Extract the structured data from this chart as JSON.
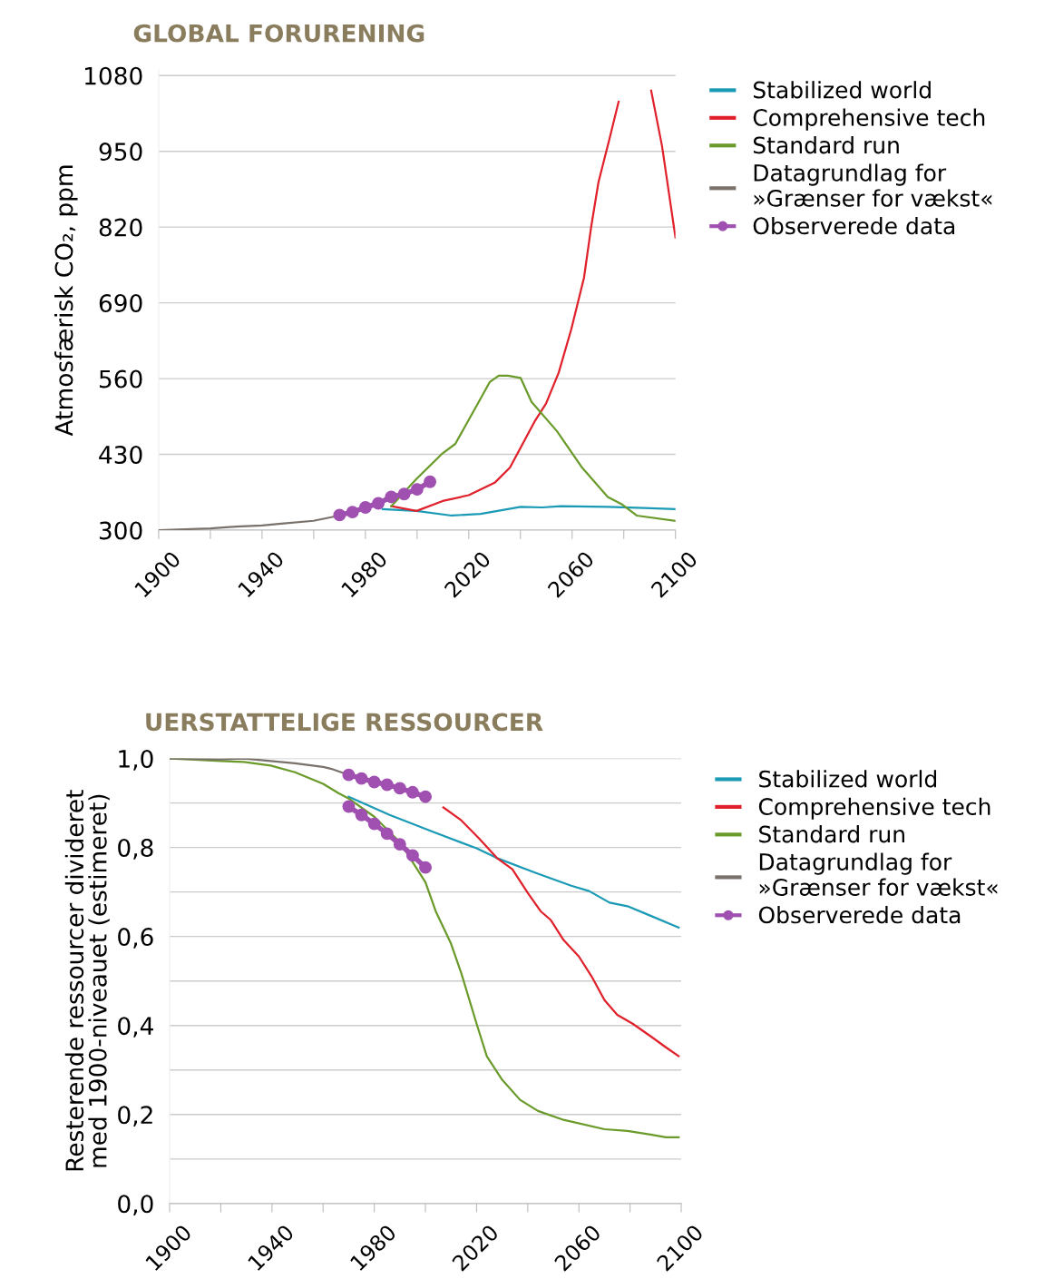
{
  "chart_data": [
    {
      "type": "line",
      "title": "GLOBAL FORURENING",
      "ylabel": "Atmosfærisk CO₂, ppm",
      "xlim": [
        1900,
        2100
      ],
      "ylim": [
        300,
        1090
      ],
      "xticks": [
        1900,
        {
          "value": 1920,
          "label": null
        },
        1940,
        {
          "value": 1960,
          "label": null
        },
        1980,
        {
          "value": 2000,
          "label": null
        },
        2020,
        {
          "value": 2040,
          "label": null
        },
        2060,
        {
          "value": 2080,
          "label": null
        },
        2100
      ],
      "yticks": [
        300,
        430,
        560,
        690,
        820,
        950,
        1080
      ],
      "grid": "y",
      "legend": "right",
      "marker": "none",
      "line_style": "solid",
      "series": [
        {
          "name": "Stabilized world",
          "color": "#1a9ab5",
          "x": [
            1986.7,
            1999.8,
            2013.4,
            2024.6,
            2040.1,
            2048.5,
            2055.5,
            2073.8,
            2087.8,
            2100
          ],
          "values": [
            336,
            333,
            325,
            328,
            340,
            339,
            341,
            340,
            338,
            336
          ]
        },
        {
          "name": "Comprehensive tech",
          "color": "#e0202a",
          "x": [
            1990,
            1999.8,
            2009.9,
            2020,
            2030.2,
            2035.9,
            2045.7,
            2049.9,
            2054.8,
            2059.7,
            2064.6,
            2067.4,
            2070.2,
            2074.5,
            2078,
            2085,
            2090.6,
            2094.8,
            2100
          ],
          "values": [
            341,
            333,
            350,
            360,
            382,
            407,
            488,
            517,
            570,
            645,
            733,
            821,
            897,
            972,
            1035,
            null,
            1054,
            959,
            802
          ]
        },
        {
          "name": "Standard run",
          "color": "#6a9a2a",
          "x": [
            1990,
            1999.8,
            2009.9,
            2014.8,
            2024.6,
            2028.1,
            2031.6,
            2035.2,
            2040.1,
            2044.3,
            2054.1,
            2063.9,
            2073.8,
            2079.4,
            2085,
            2100
          ],
          "values": [
            341,
            388,
            432,
            448,
            526,
            554,
            565,
            565,
            561,
            520,
            470,
            407,
            357,
            344,
            325,
            316
          ]
        },
        {
          "name": "Datagrundlag for\n»Grænser for vækst«",
          "color": "#7a716a",
          "x": [
            1900,
            1920,
            1929.9,
            1940,
            1947.4,
            1959.9,
            1969.9
          ],
          "values": [
            300,
            303,
            306,
            308,
            311,
            316,
            325
          ]
        },
        {
          "name": "Observerede data",
          "color": "#a050b0",
          "marker": "circle",
          "x": [
            1970,
            1975,
            1980,
            1985,
            1990,
            1995,
            2000,
            2005
          ],
          "values": [
            326,
            331,
            339,
            346,
            357,
            362,
            370,
            383
          ]
        }
      ]
    },
    {
      "type": "line",
      "title": "UERSTATTELIGE RESSOURCER",
      "ylabel": "Resterende ressourcer divideret\nmed 1900-niveauet (estimeret)",
      "xlim": [
        1900,
        2100
      ],
      "ylim": [
        0,
        1.0
      ],
      "xticks": [
        1900,
        {
          "value": 1920,
          "label": null
        },
        1940,
        {
          "value": 1960,
          "label": null
        },
        1980,
        {
          "value": 2000,
          "label": null
        },
        2020,
        {
          "value": 2040,
          "label": null
        },
        2060,
        {
          "value": 2080,
          "label": null
        },
        2100
      ],
      "yticks": [
        {
          "value": 0,
          "label": "0,0"
        },
        {
          "value": 0.1,
          "label": null
        },
        {
          "value": 0.2,
          "label": "0,2"
        },
        {
          "value": 0.3,
          "label": null
        },
        {
          "value": 0.4,
          "label": "0,4"
        },
        {
          "value": 0.5,
          "label": null
        },
        {
          "value": 0.6,
          "label": "0,6"
        },
        {
          "value": 0.7,
          "label": null
        },
        {
          "value": 0.8,
          "label": "0,8"
        },
        {
          "value": 0.9,
          "label": null
        },
        {
          "value": 1.0,
          "label": "1,0"
        }
      ],
      "grid": "y",
      "legend": "right",
      "marker": "none",
      "line_style": "solid",
      "series": [
        {
          "name": "Stabilized world",
          "color": "#1a9ab5",
          "x": [
            1970,
            1986,
            2004,
            2020,
            2028,
            2043,
            2057,
            2064,
            2072,
            2079,
            2087,
            2099
          ],
          "values": [
            0.914,
            0.873,
            0.833,
            0.798,
            0.776,
            0.743,
            0.714,
            0.702,
            0.676,
            0.668,
            0.649,
            0.62
          ]
        },
        {
          "name": "Comprehensive tech",
          "color": "#e0202a",
          "x": [
            2007,
            2014,
            2021,
            2028,
            2034,
            2040,
            2045,
            2049,
            2054,
            2060,
            2065,
            2070,
            2075,
            2081,
            2088,
            2094,
            2099
          ],
          "values": [
            0.89,
            0.861,
            0.82,
            0.776,
            0.751,
            0.698,
            0.657,
            0.637,
            0.592,
            0.555,
            0.51,
            0.457,
            0.424,
            0.404,
            0.376,
            0.351,
            0.331
          ]
        },
        {
          "name": "Standard run",
          "color": "#6a9a2a",
          "x": [
            1900,
            1908,
            1920,
            1929,
            1939.5,
            1949,
            1960,
            1966,
            1970,
            1980,
            1990,
            2000,
            2004,
            2010,
            2014,
            2020,
            2024,
            2030,
            2037,
            2044,
            2054,
            2070,
            2079,
            2088,
            2094,
            2099
          ],
          "values": [
            1.0,
            0.998,
            0.994,
            0.992,
            0.984,
            0.969,
            0.943,
            0.922,
            0.91,
            0.869,
            0.812,
            0.722,
            0.657,
            0.584,
            0.518,
            0.404,
            0.331,
            0.278,
            0.233,
            0.208,
            0.188,
            0.167,
            0.163,
            0.155,
            0.149,
            0.149
          ]
        },
        {
          "name": "Datagrundlag for\n»Grænser for vækst«",
          "color": "#7a716a",
          "x": [
            1900,
            1920,
            1929,
            1939.5,
            1949,
            1960,
            1963,
            1970
          ],
          "values": [
            1.0,
            0.998,
            1.0,
            0.994,
            0.989,
            0.981,
            0.977,
            0.963
          ]
        },
        {
          "name": "Observerede data",
          "color": "#a050b0",
          "marker": "circle",
          "x": [
            1970,
            1975,
            1980,
            1985,
            1990,
            1995,
            2000
          ],
          "values": [
            0.963,
            0.955,
            0.947,
            0.941,
            0.933,
            0.924,
            0.914
          ]
        },
        {
          "color": "#a050b0",
          "marker": "circle",
          "x": [
            1970,
            1975,
            1980,
            1985,
            1990,
            1995,
            2000
          ],
          "values": [
            0.892,
            0.873,
            0.853,
            0.831,
            0.807,
            0.782,
            0.755
          ]
        }
      ]
    }
  ]
}
